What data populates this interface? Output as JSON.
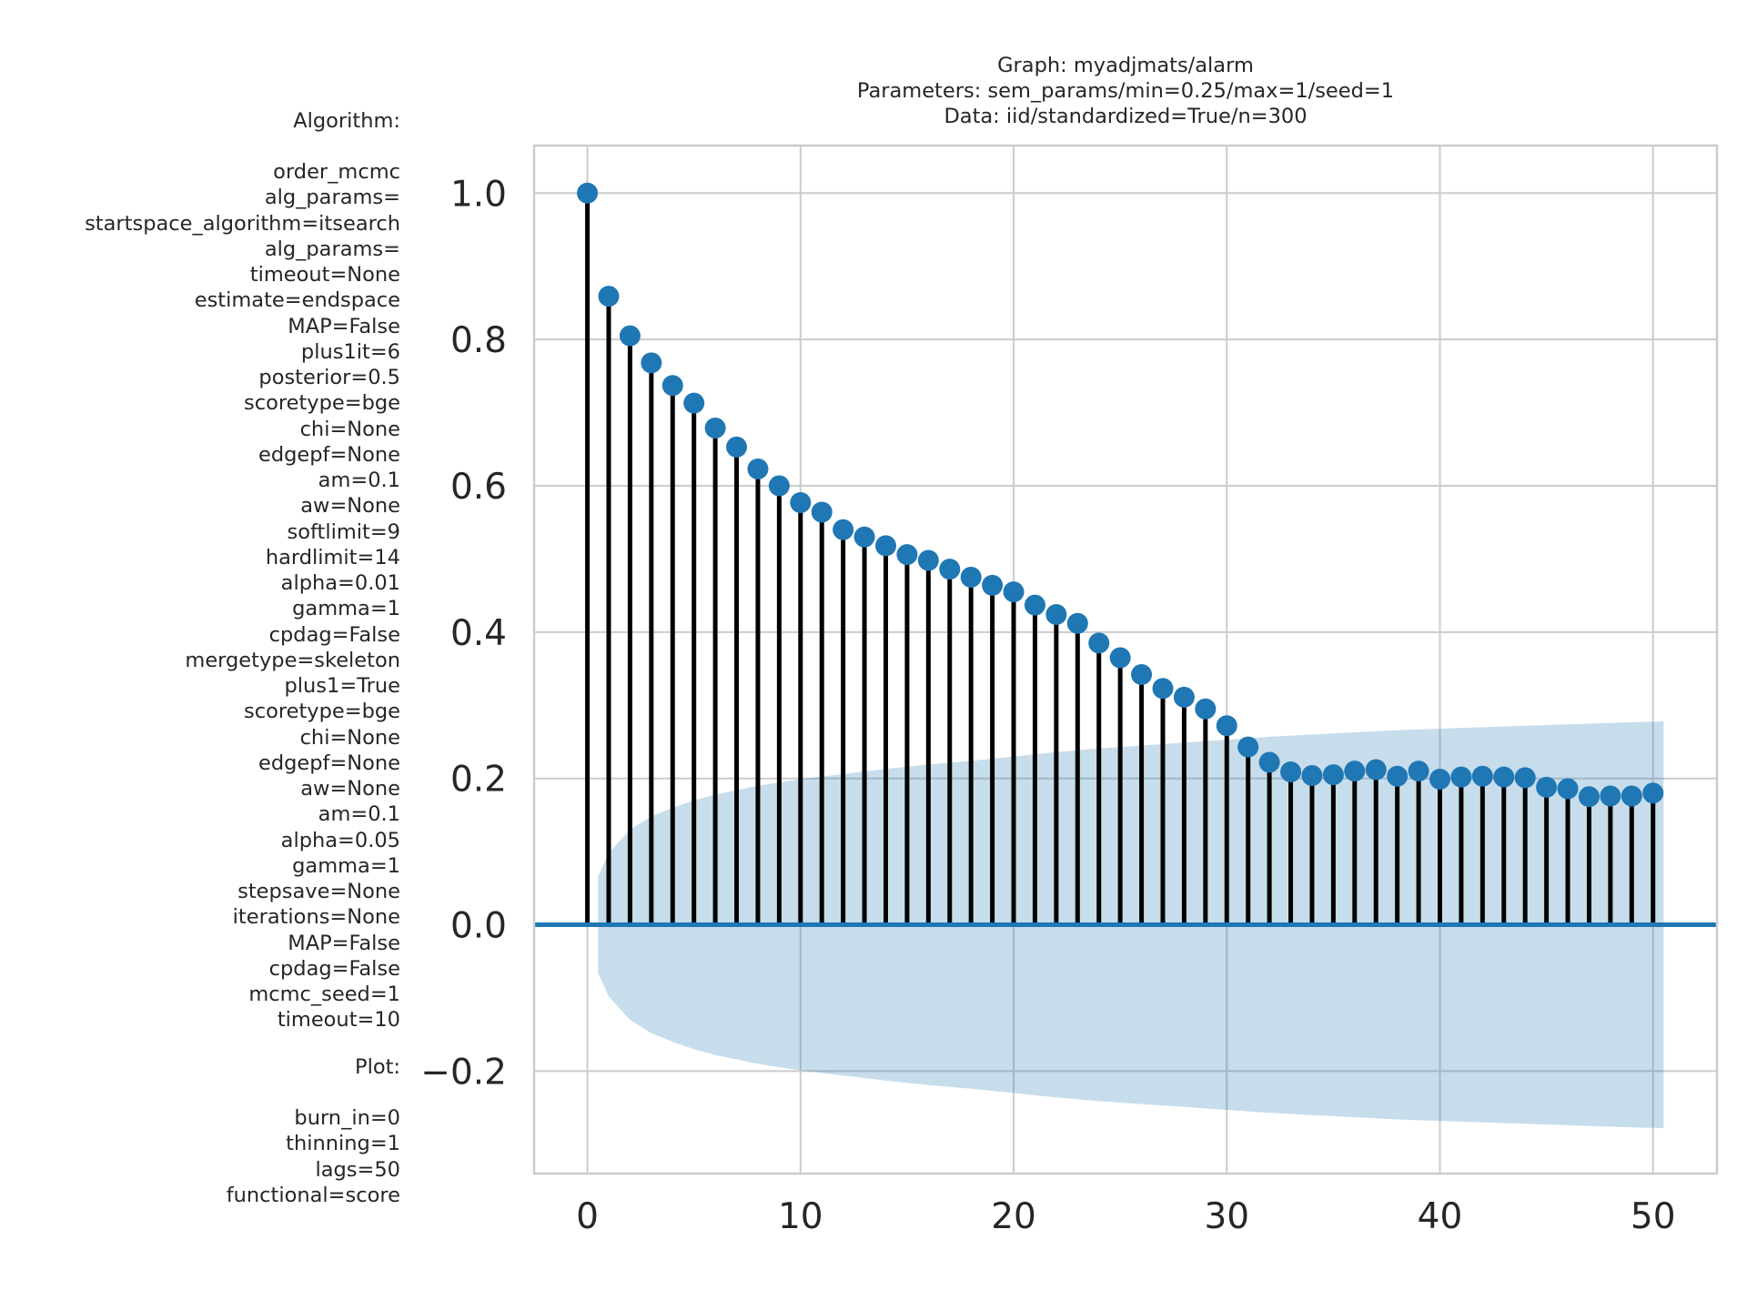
{
  "chart_title": {
    "lines": [
      "Graph: myadjmats/alarm",
      "Parameters: sem_params/min=0.25/max=1/seed=1",
      "Data: iid/standardized=True/n=300"
    ]
  },
  "side_panel": {
    "algorithm_header": "Algorithm:",
    "algorithm_lines": [
      "order_mcmc",
      "alg_params=",
      "startspace_algorithm=itsearch",
      "alg_params=",
      "timeout=None",
      "estimate=endspace",
      "MAP=False",
      "plus1it=6",
      "posterior=0.5",
      "scoretype=bge",
      "chi=None",
      "edgepf=None",
      "am=0.1",
      "aw=None",
      "softlimit=9",
      "hardlimit=14",
      "alpha=0.01",
      "gamma=1",
      "cpdag=False",
      "mergetype=skeleton",
      "plus1=True",
      "scoretype=bge",
      "chi=None",
      "edgepf=None",
      "aw=None",
      "am=0.1",
      "alpha=0.05",
      "gamma=1",
      "stepsave=None",
      "iterations=None",
      "MAP=False",
      "cpdag=False",
      "mcmc_seed=1",
      "timeout=10"
    ],
    "plot_header": "Plot:",
    "plot_lines": [
      "burn_in=0",
      "thinning=1",
      "lags=50",
      "functional=score"
    ]
  },
  "chart_data": {
    "type": "stem",
    "title": "",
    "xlabel": "",
    "ylabel": "",
    "xlim": [
      -2.5,
      53
    ],
    "ylim": [
      -0.34,
      1.065
    ],
    "grid": true,
    "x_ticks": [
      0,
      10,
      20,
      30,
      40,
      50
    ],
    "y_ticks": [
      1.0,
      0.8,
      0.6,
      0.4,
      0.2,
      0.0,
      -0.2
    ],
    "y_tick_labels": [
      "1.0",
      "0.8",
      "0.6",
      "0.4",
      "0.2",
      "0.0",
      "−0.2"
    ],
    "x": [
      0,
      1,
      2,
      3,
      4,
      5,
      6,
      7,
      8,
      9,
      10,
      11,
      12,
      13,
      14,
      15,
      16,
      17,
      18,
      19,
      20,
      21,
      22,
      23,
      24,
      25,
      26,
      27,
      28,
      29,
      30,
      31,
      32,
      33,
      34,
      35,
      36,
      37,
      38,
      39,
      40,
      41,
      42,
      43,
      44,
      45,
      46,
      47,
      48,
      49,
      50
    ],
    "values": [
      1.0,
      0.859,
      0.805,
      0.768,
      0.737,
      0.713,
      0.679,
      0.653,
      0.623,
      0.6,
      0.577,
      0.564,
      0.54,
      0.53,
      0.518,
      0.506,
      0.498,
      0.486,
      0.475,
      0.464,
      0.455,
      0.437,
      0.424,
      0.412,
      0.385,
      0.365,
      0.342,
      0.323,
      0.311,
      0.295,
      0.272,
      0.243,
      0.222,
      0.209,
      0.204,
      0.205,
      0.21,
      0.212,
      0.203,
      0.21,
      0.199,
      0.202,
      0.203,
      0.202,
      0.201,
      0.188,
      0.186,
      0.175,
      0.176,
      0.176,
      0.18
    ],
    "confidence_band": {
      "x": [
        0.5,
        1,
        2,
        3,
        4,
        5,
        6,
        8,
        10,
        12,
        14,
        16,
        18,
        20,
        22,
        24,
        26,
        28,
        30,
        32,
        34,
        36,
        38,
        40,
        42,
        44,
        46,
        48,
        50.5
      ],
      "upper": [
        0.066,
        0.098,
        0.13,
        0.148,
        0.16,
        0.17,
        0.178,
        0.19,
        0.199,
        0.206,
        0.213,
        0.219,
        0.224,
        0.23,
        0.236,
        0.241,
        0.245,
        0.249,
        0.253,
        0.257,
        0.26,
        0.263,
        0.266,
        0.268,
        0.27,
        0.272,
        0.274,
        0.276,
        0.278
      ],
      "lower": [
        -0.066,
        -0.098,
        -0.13,
        -0.148,
        -0.16,
        -0.17,
        -0.178,
        -0.19,
        -0.199,
        -0.206,
        -0.213,
        -0.219,
        -0.224,
        -0.23,
        -0.236,
        -0.241,
        -0.245,
        -0.249,
        -0.253,
        -0.257,
        -0.26,
        -0.263,
        -0.266,
        -0.268,
        -0.27,
        -0.272,
        -0.274,
        -0.276,
        -0.278
      ]
    },
    "colors": {
      "marker": "#1f77b4",
      "stem": "#000000",
      "zero_line": "#1f77b4",
      "band": "#1f77b4",
      "grid": "#cccccc",
      "axes_edge": "#cccccc"
    }
  }
}
